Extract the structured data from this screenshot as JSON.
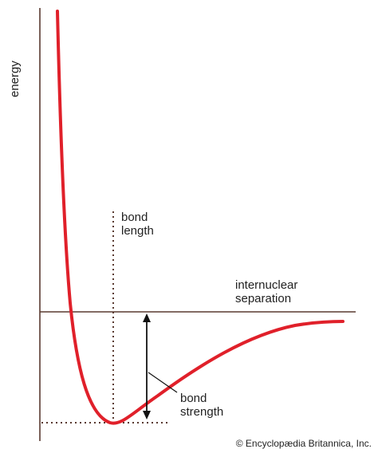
{
  "labels": {
    "y_axis": "energy",
    "x_axis_line1": "internuclear",
    "x_axis_line2": "separation",
    "bond_length_line1": "bond",
    "bond_length_line2": "length",
    "bond_strength_line1": "bond",
    "bond_strength_line2": "strength"
  },
  "copyright": "© Encyclopædia Britannica, Inc.",
  "colors": {
    "curve": "#e0202a",
    "axes": "#5a3a30",
    "ink": "#222222"
  }
}
